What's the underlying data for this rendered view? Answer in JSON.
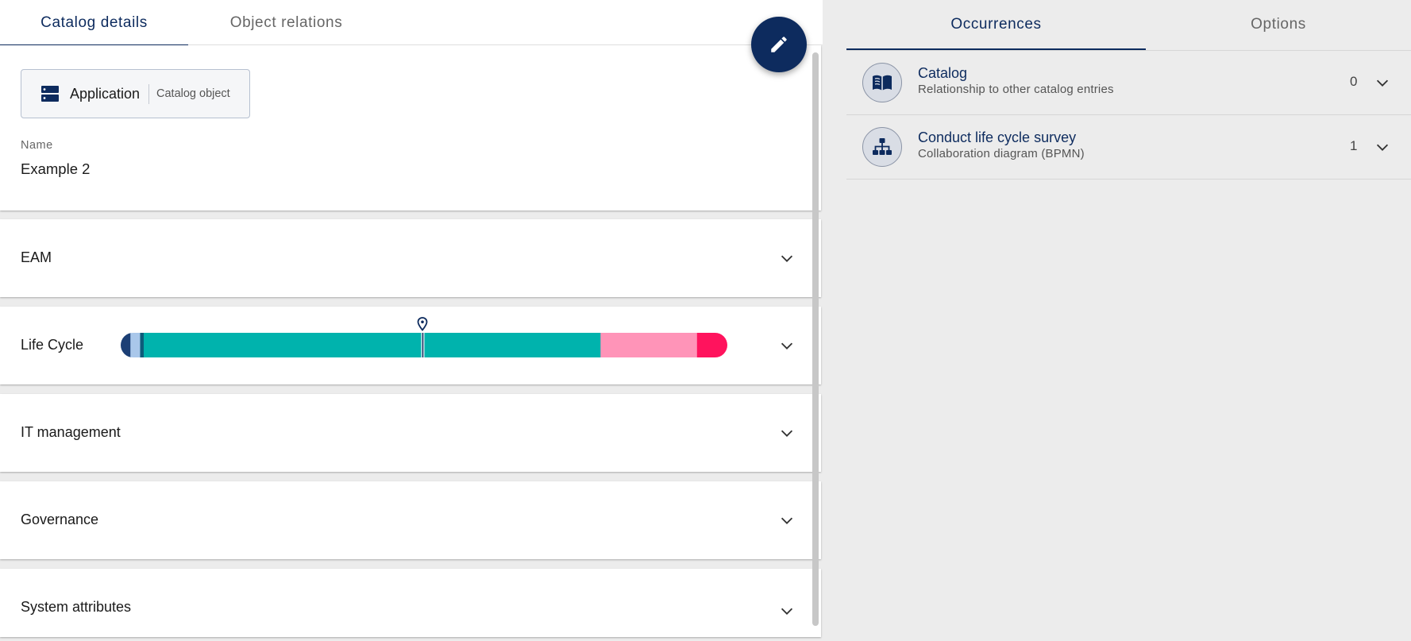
{
  "left_tabs": [
    {
      "label": "Catalog details",
      "active": true
    },
    {
      "label": "Object relations",
      "active": false
    }
  ],
  "header": {
    "object_type": "Application",
    "object_kind": "Catalog object",
    "object_type_icon": "server-icon",
    "edit_icon": "pencil-icon"
  },
  "fields": {
    "name_label": "Name",
    "name_value": "Example 2"
  },
  "sections": [
    {
      "title": "EAM"
    },
    {
      "title": "Life Cycle"
    },
    {
      "title": "IT management"
    },
    {
      "title": "Governance"
    },
    {
      "title": "System attributes"
    }
  ],
  "life_cycle": {
    "phases": [
      {
        "fraction": 0.016,
        "color": "#1c3f75"
      },
      {
        "fraction": 0.016,
        "color": "#a9c7ea"
      },
      {
        "fraction": 0.006,
        "color": "#0d5c7a"
      },
      {
        "fraction": 0.753,
        "color": "#00b3ad"
      },
      {
        "fraction": 0.159,
        "color": "#ff94b8"
      },
      {
        "fraction": 0.05,
        "color": "#ff135d"
      }
    ],
    "marker_fraction": 0.498,
    "marker_icon": "location-pin-icon"
  },
  "right_tabs": [
    {
      "label": "Occurrences",
      "active": true
    },
    {
      "label": "Options",
      "active": false
    }
  ],
  "occurrences": [
    {
      "title": "Catalog",
      "subtitle": "Relationship to other catalog entries",
      "count": "0",
      "icon": "book-icon"
    },
    {
      "title": "Conduct life cycle survey",
      "subtitle": "Collaboration diagram (BPMN)",
      "count": "1",
      "icon": "hierarchy-icon"
    }
  ],
  "colors": {
    "accent": "#0d2b5e"
  }
}
